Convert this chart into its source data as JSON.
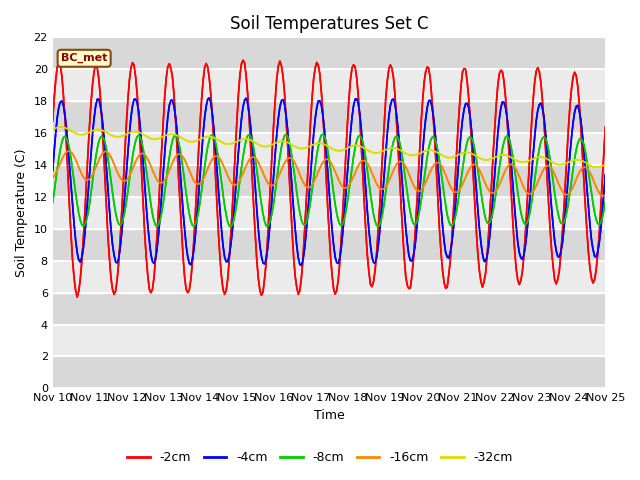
{
  "title": "Soil Temperatures Set C",
  "xlabel": "Time",
  "ylabel": "Soil Temperature (C)",
  "annotation": "BC_met",
  "ylim": [
    0,
    22
  ],
  "xlim": [
    0,
    360
  ],
  "legend": [
    "-2cm",
    "-4cm",
    "-8cm",
    "-16cm",
    "-32cm"
  ],
  "colors": [
    "#ff0000",
    "#0000ff",
    "#00cc00",
    "#ff8800",
    "#dddd00"
  ],
  "line_width": 1.2,
  "xtick_labels": [
    "Nov 10",
    "Nov 11",
    "Nov 12",
    "Nov 13",
    "Nov 14",
    "Nov 15",
    "Nov 16",
    "Nov 17",
    "Nov 18",
    "Nov 19",
    "Nov 20",
    "Nov 21",
    "Nov 22",
    "Nov 23",
    "Nov 24",
    "Nov 25"
  ],
  "xtick_positions": [
    0,
    24,
    48,
    72,
    96,
    120,
    144,
    168,
    192,
    216,
    240,
    264,
    288,
    312,
    336,
    360
  ],
  "ytick_positions": [
    0,
    2,
    4,
    6,
    8,
    10,
    12,
    14,
    16,
    18,
    20,
    22
  ],
  "plot_bg_color": "#ebebeb",
  "title_fontsize": 12,
  "axis_fontsize": 9,
  "tick_fontsize": 8
}
